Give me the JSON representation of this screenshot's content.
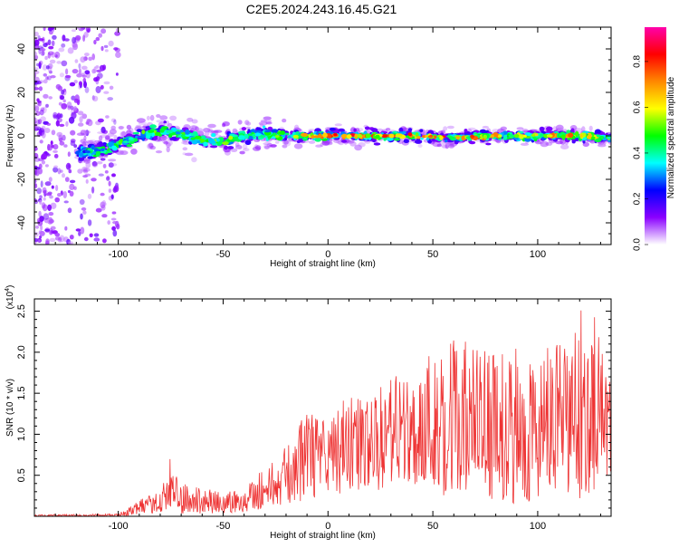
{
  "title": "C2E5.2024.243.16.45.G21",
  "chart_data": [
    {
      "type": "heatmap",
      "xlabel": "Height of straight line (km)",
      "ylabel": "Frequency (Hz)",
      "xlim": [
        -140,
        135
      ],
      "ylim": [
        -50,
        50
      ],
      "x_ticks": [
        -100,
        -50,
        0,
        50,
        100
      ],
      "y_ticks": [
        -40,
        -20,
        0,
        20,
        40
      ],
      "colorbar": {
        "label": "Normalized spectral amplitude",
        "range": [
          0.0,
          0.95
        ],
        "ticks": [
          "0.0",
          "0.2",
          "0.4",
          "0.6",
          "0.8"
        ],
        "tick_values": [
          0.0,
          0.2,
          0.4,
          0.6,
          0.8
        ],
        "colors": [
          "#ffffff",
          "#8a00ff",
          "#0000ff",
          "#00ffff",
          "#00ff00",
          "#ffff00",
          "#ff8800",
          "#ff0000",
          "#ff00aa"
        ]
      },
      "ridge": {
        "x": [
          -118,
          -110,
          -100,
          -90,
          -80,
          -70,
          -60,
          -50,
          -40,
          -30,
          -20,
          -10,
          0,
          20,
          40,
          60,
          80,
          100,
          120,
          135
        ],
        "frequency": [
          -8,
          -7,
          -4,
          0,
          2,
          1,
          -2,
          -3,
          0,
          1,
          0,
          0,
          0,
          0,
          0,
          -1,
          0,
          0,
          0,
          -1
        ],
        "amplitude": [
          0.4,
          0.45,
          0.5,
          0.55,
          0.5,
          0.5,
          0.55,
          0.55,
          0.55,
          0.5,
          0.6,
          0.7,
          0.85,
          0.85,
          0.8,
          0.8,
          0.75,
          0.7,
          0.75,
          0.6
        ]
      }
    },
    {
      "type": "line",
      "xlabel": "Height of straight line (km)",
      "ylabel": "SNR (10 * v/v)",
      "multiplier": "(x10",
      "multiplier_exp": "4",
      "multiplier_close": ")",
      "xlim": [
        -140,
        135
      ],
      "ylim": [
        0,
        2.65
      ],
      "x_ticks": [
        -100,
        -50,
        0,
        50,
        100
      ],
      "y_ticks": [
        0.5,
        1.0,
        1.5,
        2.0,
        2.5
      ],
      "y_tick_labels": [
        "0.5",
        "1.0",
        "1.5",
        "2.0",
        "2.5"
      ],
      "color": "#ee3333",
      "envelope": {
        "x": [
          -140,
          -100,
          -90,
          -80,
          -76,
          -70,
          -60,
          -50,
          -40,
          -30,
          -20,
          -10,
          0,
          10,
          20,
          30,
          40,
          50,
          60,
          70,
          80,
          90,
          100,
          110,
          120,
          126,
          135
        ],
        "max": [
          0.02,
          0.03,
          0.2,
          0.3,
          0.75,
          0.4,
          0.35,
          0.3,
          0.4,
          0.6,
          0.85,
          1.3,
          1.2,
          1.5,
          1.4,
          1.75,
          1.75,
          2.15,
          2.3,
          2.1,
          2.0,
          2.05,
          2.05,
          2.1,
          2.5,
          2.65,
          1.6
        ],
        "min": [
          0.0,
          0.0,
          0.02,
          0.05,
          0.05,
          0.03,
          0.03,
          0.03,
          0.05,
          0.1,
          0.15,
          0.2,
          0.25,
          0.3,
          0.3,
          0.35,
          0.4,
          0.3,
          0.2,
          0.25,
          0.2,
          0.15,
          0.2,
          0.25,
          0.2,
          0.3,
          0.5
        ]
      }
    }
  ]
}
